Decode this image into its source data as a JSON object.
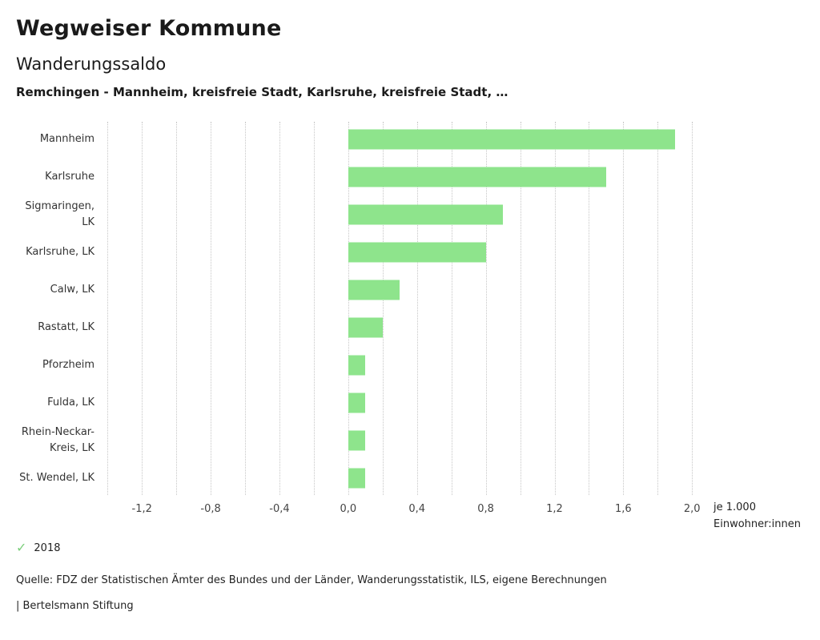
{
  "header": {
    "title": "Wegweiser Kommune",
    "subtitle": "Wanderungssaldo",
    "selection": "Remchingen - Mannheim, kreisfreie Stadt, Karlsruhe, kreisfreie Stadt, …"
  },
  "chart_data": {
    "type": "bar",
    "orientation": "horizontal",
    "title": "Wanderungssaldo",
    "categories": [
      "Mannheim",
      "Karlsruhe",
      "Sigmaringen, LK",
      "Karlsruhe, LK",
      "Calw, LK",
      "Rastatt, LK",
      "Pforzheim",
      "Fulda, LK",
      "Rhein-Neckar-Kreis, LK",
      "St. Wendel, LK"
    ],
    "series": [
      {
        "name": "2018",
        "values": [
          1.9,
          1.5,
          0.9,
          0.8,
          0.3,
          0.2,
          0.1,
          0.1,
          0.1,
          0.1
        ]
      }
    ],
    "bar_color": "#8ee48c",
    "xlim": [
      -1.42,
      2.05
    ],
    "ticks": [
      -1.2,
      -0.8,
      -0.4,
      0.0,
      0.4,
      0.8,
      1.2,
      1.6,
      2.0
    ],
    "tick_labels": [
      "-1,2",
      "-0,8",
      "-0,4",
      "0,0",
      "0,4",
      "0,8",
      "1,2",
      "1,6",
      "2,0"
    ],
    "grid": true,
    "grid_min": -1.4,
    "grid_max": 2.0,
    "minor_grid_step": 0.2,
    "unit_label": "je 1.000 Einwohner:innen",
    "legend_position": "bottom-left"
  },
  "axis_note": {
    "line1": "je 1.000",
    "line2": "Einwohner:innen"
  },
  "legend": {
    "year": "2018",
    "check_color": "#7ccf7c"
  },
  "footer": {
    "source": "Quelle: FDZ der Statistischen Ämter des Bundes und der Länder, Wanderungsstatistik, ILS, eigene Berechnungen",
    "branding": "| Bertelsmann Stiftung"
  }
}
